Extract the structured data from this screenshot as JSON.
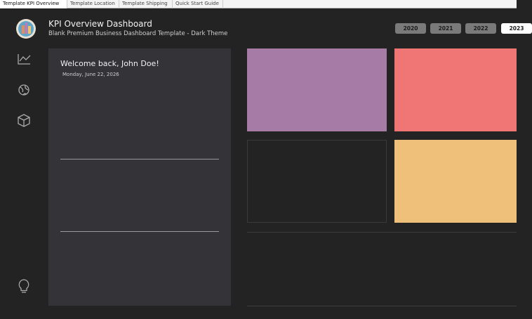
{
  "tabs": [
    "Template KPI Overview",
    "Template Location",
    "Template Shipping",
    "Quick Start Guide"
  ],
  "header": {
    "title": "KPI Overview Dashboard",
    "subtitle": "Blank Premium Business Dashboard Template - Dark Theme"
  },
  "year_buttons": [
    "2020",
    "2021",
    "2022",
    "2023"
  ],
  "welcome": {
    "greeting": "Welcome back, John Doe!",
    "date": "Monday, June 22, 2026"
  }
}
